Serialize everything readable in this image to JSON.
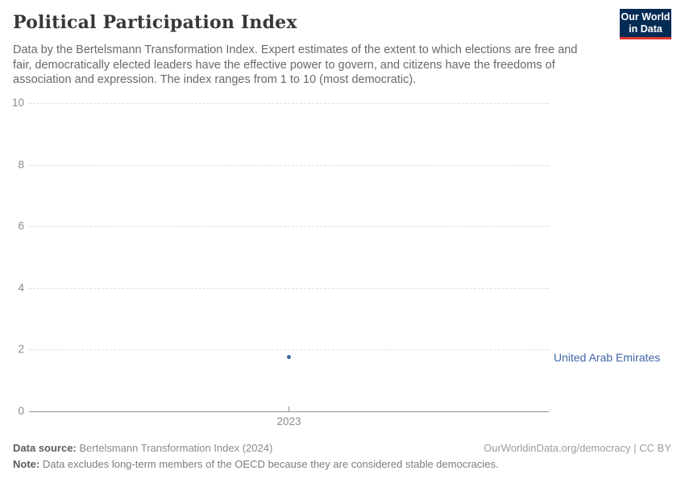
{
  "header": {
    "title": "Political Participation Index",
    "subtitle_lines": [
      "Data by the Bertelsmann Transformation Index. Expert estimates of the extent to which elections are free and",
      "fair, democratically elected leaders have the effective power to govern, and citizens have the freedoms of",
      "association and expression. The index ranges from 1 to 10 (most democratic)."
    ],
    "logo": {
      "line1": "Our World",
      "line2": "in Data",
      "bg_color": "#042b54",
      "bar_color": "#e0362e"
    }
  },
  "chart_data": {
    "type": "scatter",
    "title": "Political Participation Index",
    "x": [
      2023
    ],
    "series": [
      {
        "name": "United Arab Emirates",
        "values": [
          1.75
        ],
        "color": "#4165a8"
      }
    ],
    "xlabel": "",
    "ylabel": "",
    "ylim": [
      0,
      10
    ],
    "yticks": [
      0,
      2,
      4,
      6,
      8,
      10
    ],
    "xticks": [
      "2023"
    ],
    "grid": "horizontal dashed",
    "legend_position": "right-of-point",
    "gridline_color": "#dcdcdc",
    "axis_color": "#8f8f8f",
    "tick_label_color": "#8b8b8b"
  },
  "footer": {
    "data_source_label": "Data source:",
    "data_source_text": "Bertelsmann Transformation Index (2024)",
    "attribution": "OurWorldinData.org/democracy | CC BY",
    "note_label": "Note:",
    "note_text": "Data excludes long-term members of the OECD because they are considered stable democracies."
  }
}
